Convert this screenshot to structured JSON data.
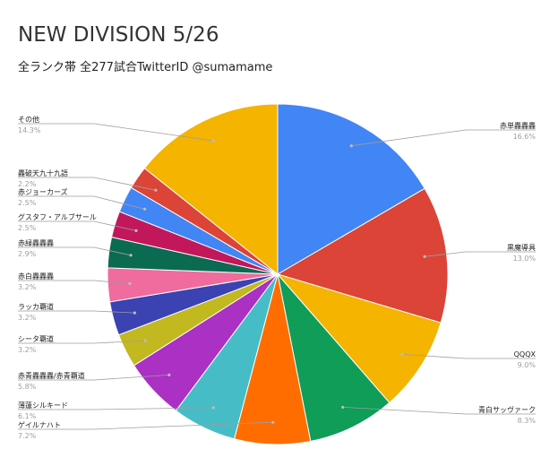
{
  "chart_data": {
    "type": "pie",
    "title": "NEW DIVISION 5/26",
    "subtitle": "全ランク帯 全277試合TwitterID @sumamame",
    "legend": "none",
    "slices": [
      {
        "label": "赤単轟轟轟",
        "pct_label": "16.6%",
        "value": 16.6,
        "color": "#4285f4",
        "side": "right"
      },
      {
        "label": "黒魔導具",
        "pct_label": "13.0%",
        "value": 13.0,
        "color": "#db4437",
        "side": "right"
      },
      {
        "label": "QQQX",
        "pct_label": "9.0%",
        "value": 9.0,
        "color": "#f4b400",
        "side": "right"
      },
      {
        "label": "青白サッヴァーク",
        "pct_label": "8.3%",
        "value": 8.3,
        "color": "#0f9d58",
        "side": "right"
      },
      {
        "label": "ゲイルナハト",
        "pct_label": "7.2%",
        "value": 7.2,
        "color": "#ff6d01",
        "side": "left"
      },
      {
        "label": "薄蓮シルキード",
        "pct_label": "6.1%",
        "value": 6.1,
        "color": "#46bdc6",
        "side": "left"
      },
      {
        "label": "赤青轟轟轟/赤青覇道",
        "pct_label": "5.8%",
        "value": 5.8,
        "color": "#ab30c4",
        "side": "left"
      },
      {
        "label": "シータ覇道",
        "pct_label": "3.2%",
        "value": 3.2,
        "color": "#c2b820",
        "side": "left"
      },
      {
        "label": "ラッカ覇道",
        "pct_label": "3.2%",
        "value": 3.2,
        "color": "#3b42b2",
        "side": "left"
      },
      {
        "label": "赤白轟轟轟",
        "pct_label": "3.2%",
        "value": 3.2,
        "color": "#f06b9e",
        "side": "left"
      },
      {
        "label": "赤緑轟轟轟",
        "pct_label": "2.9%",
        "value": 2.9,
        "color": "#0b6a52",
        "side": "left"
      },
      {
        "label": "グスタフ・アルブサール",
        "pct_label": "2.5%",
        "value": 2.5,
        "color": "#c2185b",
        "side": "left"
      },
      {
        "label": "赤ジョーカーズ",
        "pct_label": "2.5%",
        "value": 2.5,
        "color": "#4285f4",
        "side": "left"
      },
      {
        "label": "轟破天九十九語",
        "pct_label": "2.2%",
        "value": 2.2,
        "color": "#db4437",
        "side": "left"
      },
      {
        "label": "その他",
        "pct_label": "14.3%",
        "value": 14.3,
        "color": "#f4b400",
        "side": "left"
      }
    ]
  }
}
